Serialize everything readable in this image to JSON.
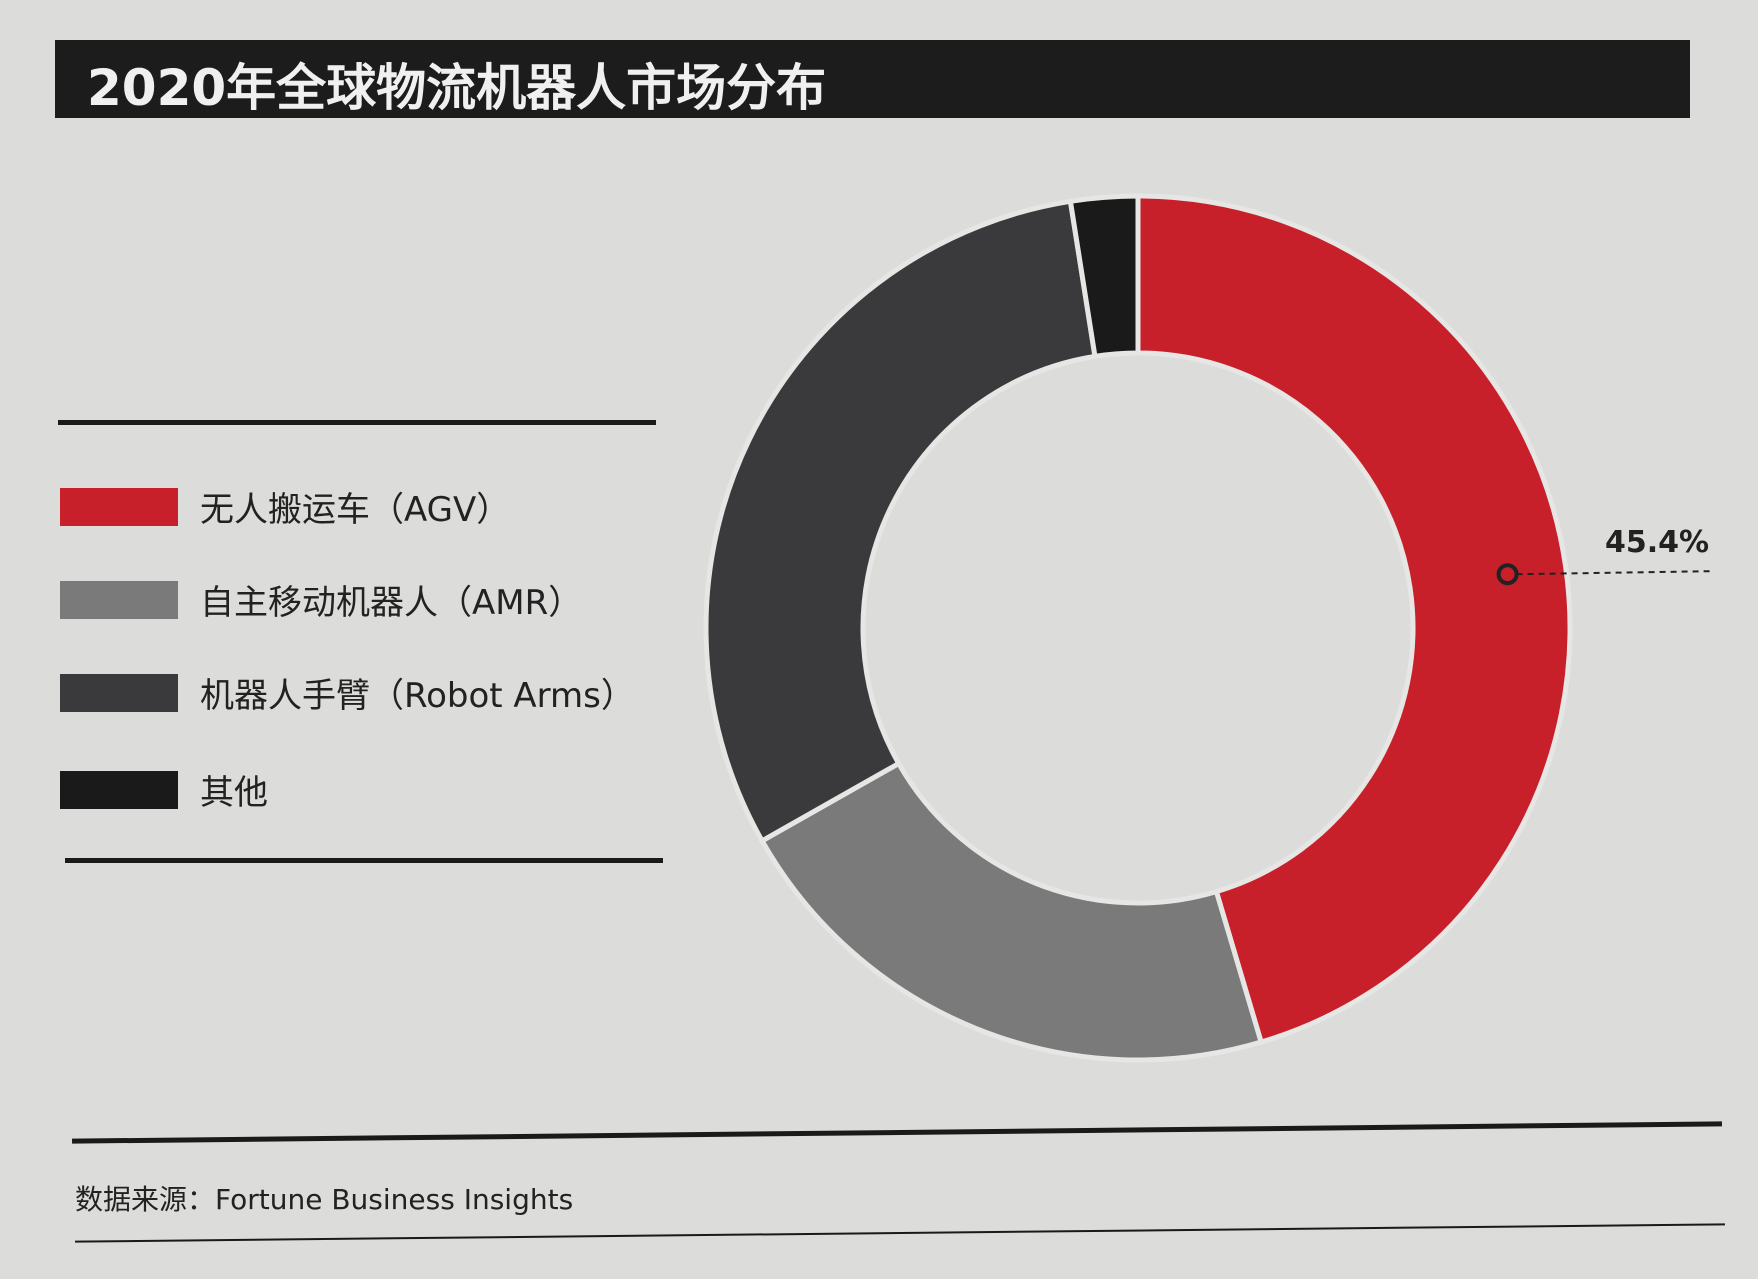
{
  "chart_data": {
    "type": "pie",
    "title": "2020年全球物流机器人市场分布",
    "categories": [
      "无人搬运车（AGV）",
      "自主移动机器人（AMR）",
      "机器人手臂（Robot Arms）",
      "其他"
    ],
    "values": [
      45.4,
      21.4,
      30.7,
      2.5
    ],
    "colors": [
      "#c8202a",
      "#7a7a7a",
      "#3a3a3c",
      "#1a1a1a"
    ],
    "data_labels": [
      {
        "category": "无人搬运车（AGV）",
        "text": "45.4%"
      }
    ],
    "legend_position": "left",
    "donut": true,
    "source": "数据来源：Fortune Business Insights"
  }
}
